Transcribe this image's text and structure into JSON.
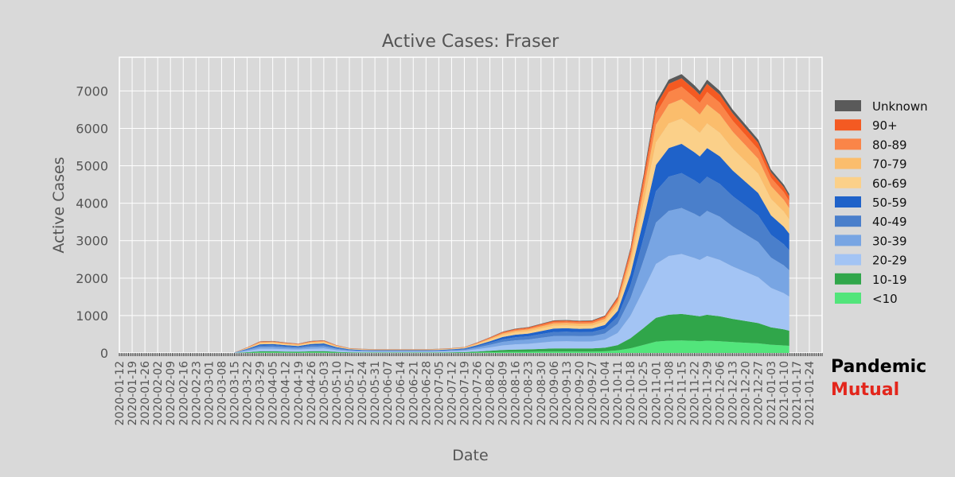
{
  "chart_data": {
    "type": "area",
    "stacked": true,
    "title": "Active Cases: Fraser",
    "xlabel": "Date",
    "ylabel": "Active Cases",
    "ylim": [
      0,
      7900
    ],
    "xlim": [
      "2020-01-12",
      "2021-01-31"
    ],
    "yticks": [
      0,
      1000,
      2000,
      3000,
      4000,
      5000,
      6000,
      7000
    ],
    "xticks": [
      "2020-01-12",
      "2020-01-19",
      "2020-01-26",
      "2020-02-02",
      "2020-02-09",
      "2020-02-16",
      "2020-02-23",
      "2020-03-01",
      "2020-03-08",
      "2020-03-15",
      "2020-03-22",
      "2020-03-29",
      "2020-04-05",
      "2020-04-12",
      "2020-04-19",
      "2020-04-26",
      "2020-05-03",
      "2020-05-10",
      "2020-05-17",
      "2020-05-24",
      "2020-05-31",
      "2020-06-07",
      "2020-06-14",
      "2020-06-21",
      "2020-06-28",
      "2020-07-05",
      "2020-07-12",
      "2020-07-19",
      "2020-07-26",
      "2020-08-02",
      "2020-08-09",
      "2020-08-16",
      "2020-08-23",
      "2020-08-30",
      "2020-09-06",
      "2020-09-13",
      "2020-09-20",
      "2020-09-27",
      "2020-10-04",
      "2020-10-11",
      "2020-10-18",
      "2020-10-25",
      "2020-11-01",
      "2020-11-08",
      "2020-11-15",
      "2020-11-22",
      "2020-11-29",
      "2020-12-06",
      "2020-12-13",
      "2020-12-20",
      "2020-12-27",
      "2021-01-03",
      "2021-01-10",
      "2021-01-17",
      "2021-01-24"
    ],
    "grid": true,
    "legend_position": "right",
    "total": {
      "x": [
        "2020-03-15",
        "2020-03-22",
        "2020-03-29",
        "2020-04-05",
        "2020-04-12",
        "2020-04-19",
        "2020-04-26",
        "2020-05-03",
        "2020-05-10",
        "2020-05-17",
        "2020-05-24",
        "2020-05-31",
        "2020-06-07",
        "2020-06-14",
        "2020-06-21",
        "2020-06-28",
        "2020-07-05",
        "2020-07-12",
        "2020-07-19",
        "2020-07-26",
        "2020-08-02",
        "2020-08-09",
        "2020-08-16",
        "2020-08-23",
        "2020-08-30",
        "2020-09-06",
        "2020-09-13",
        "2020-09-20",
        "2020-09-27",
        "2020-10-04",
        "2020-10-11",
        "2020-10-18",
        "2020-10-25",
        "2020-11-01",
        "2020-11-08",
        "2020-11-15",
        "2020-11-22",
        "2020-11-25",
        "2020-11-29",
        "2020-12-06",
        "2020-12-13",
        "2020-12-20",
        "2020-12-27",
        "2021-01-03",
        "2021-01-10",
        "2021-01-13"
      ],
      "values": [
        20,
        150,
        310,
        320,
        280,
        250,
        320,
        340,
        210,
        130,
        110,
        100,
        100,
        100,
        100,
        100,
        110,
        130,
        160,
        280,
        420,
        570,
        650,
        690,
        780,
        870,
        880,
        860,
        870,
        1000,
        1500,
        2800,
        4700,
        6700,
        7300,
        7450,
        7150,
        7000,
        7300,
        7000,
        6500,
        6100,
        5700,
        4900,
        4500,
        4250
      ]
    },
    "series": [
      {
        "name": "Unknown",
        "color": "#5a5a5a"
      },
      {
        "name": "90+",
        "color": "#f45a22"
      },
      {
        "name": "80-89",
        "color": "#fa8548"
      },
      {
        "name": "70-79",
        "color": "#fbbd6c"
      },
      {
        "name": "60-69",
        "color": "#fbd089"
      },
      {
        "name": "50-59",
        "color": "#1f62c9"
      },
      {
        "name": "40-49",
        "color": "#4a7fcb"
      },
      {
        "name": "30-39",
        "color": "#78a5e3"
      },
      {
        "name": "20-29",
        "color": "#a3c4f4"
      },
      {
        "name": "10-19",
        "color": "#30a64a"
      },
      {
        "name": "<10",
        "color": "#52e57b"
      }
    ],
    "stack_shares": {
      "<10": 0.045,
      "10-19": 0.095,
      "20-29": 0.215,
      "30-39": 0.165,
      "40-49": 0.125,
      "50-59": 0.105,
      "60-69": 0.09,
      "70-79": 0.07,
      "80-89": 0.045,
      "90+": 0.03,
      "Unknown": 0.015
    }
  },
  "branding": {
    "line1": "Pandemic",
    "line2": "Mutual"
  }
}
